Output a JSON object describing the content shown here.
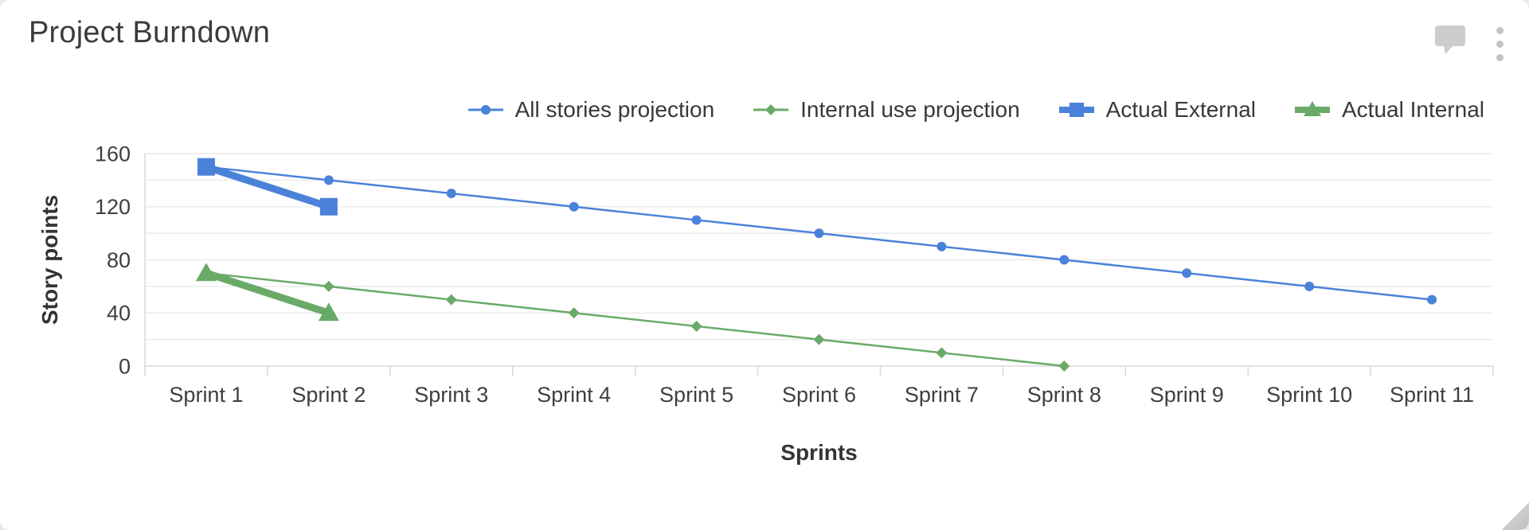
{
  "header": {
    "title": "Project Burndown",
    "icons": {
      "comment": "speech-bubble-icon",
      "menu": "kebab-menu-icon",
      "resize": "resize-handle-icon"
    }
  },
  "chart_data": {
    "type": "line",
    "title": "Project Burndown",
    "categories": [
      "Sprint 1",
      "Sprint 2",
      "Sprint 3",
      "Sprint 4",
      "Sprint 5",
      "Sprint 6",
      "Sprint 7",
      "Sprint 8",
      "Sprint 9",
      "Sprint 10",
      "Sprint 11"
    ],
    "xlabel": "Sprints",
    "ylabel": "Story points",
    "ylim": [
      0,
      160
    ],
    "yticks": [
      0,
      40,
      80,
      120,
      160
    ],
    "grid_interval": 20,
    "grid": true,
    "legend_position": "top-right",
    "colors": {
      "blue": "#4a82da",
      "green": "#6aaa68",
      "gridline": "#ececec",
      "axis": "#d9d9d9",
      "text": "#3f3f3f"
    },
    "series": [
      {
        "name": "All stories projection",
        "color": "#4a82da",
        "marker": "circle",
        "line_width": 2.5,
        "values": [
          150,
          140,
          130,
          120,
          110,
          100,
          90,
          80,
          70,
          60,
          50
        ]
      },
      {
        "name": "Internal use projection",
        "color": "#6aaa68",
        "marker": "diamond",
        "line_width": 2.5,
        "values": [
          70,
          60,
          50,
          40,
          30,
          20,
          10,
          0
        ]
      },
      {
        "name": "Actual External",
        "color": "#4a82da",
        "marker": "square",
        "line_width": 9,
        "values": [
          150,
          120
        ]
      },
      {
        "name": "Actual Internal",
        "color": "#6aaa68",
        "marker": "triangle",
        "line_width": 9,
        "values": [
          70,
          40
        ]
      }
    ]
  }
}
